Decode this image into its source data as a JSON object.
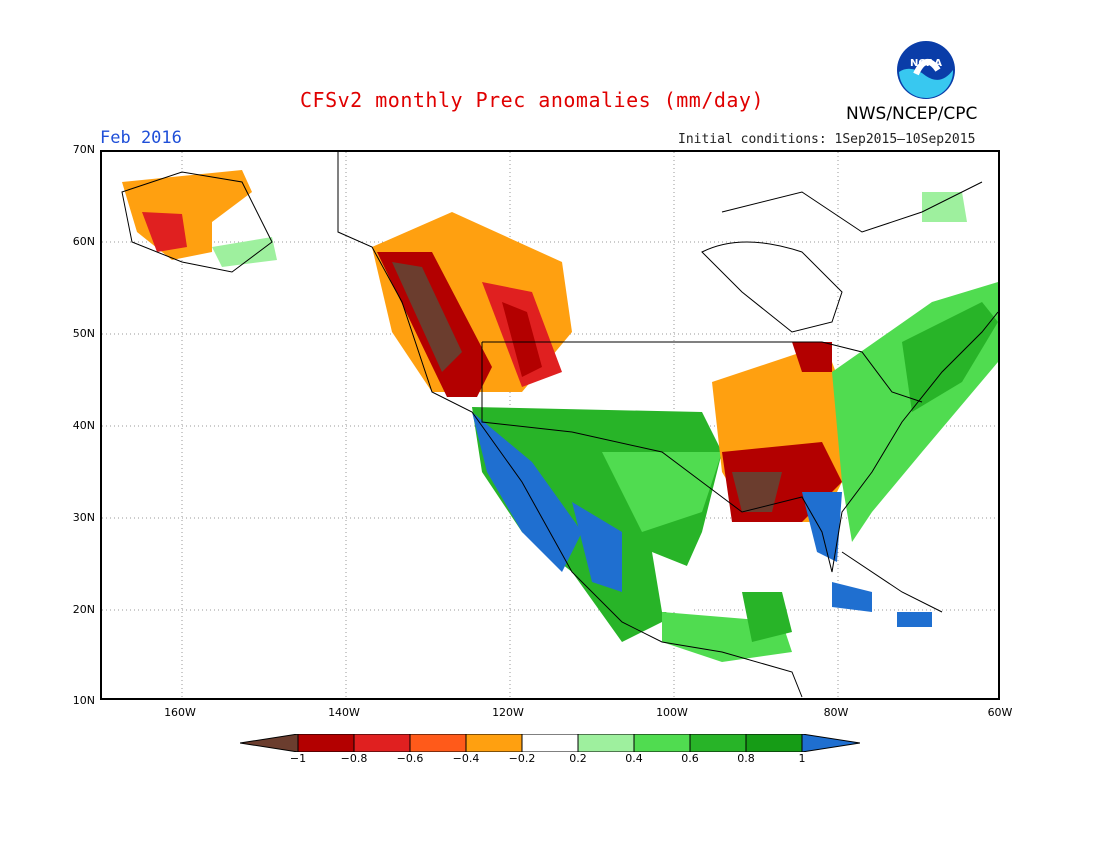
{
  "title": "CFSv2 monthly Prec anomalies (mm/day)",
  "period": "Feb 2016",
  "initial_conditions": "Initial conditions: 1Sep2015–10Sep2015",
  "org_label": "NWS/NCEP/CPC",
  "logo_text": "NOAA",
  "lat_labels": [
    "70N",
    "60N",
    "50N",
    "40N",
    "30N",
    "20N",
    "10N"
  ],
  "lon_labels": [
    "160W",
    "140W",
    "120W",
    "100W",
    "80W",
    "60W"
  ],
  "colorbar": {
    "labels": [
      "−1",
      "−0.8",
      "−0.6",
      "−0.4",
      "−0.2",
      "0.2",
      "0.4",
      "0.6",
      "0.8",
      "1"
    ],
    "colors": [
      "#6b3d2e",
      "#b30000",
      "#e02020",
      "#ff5a1a",
      "#ffa010",
      "#ffffff",
      "#9ef09e",
      "#50dc50",
      "#28b428",
      "#169c16",
      "#1f6fd0"
    ]
  },
  "regions": [
    {
      "name": "alaska-dry",
      "color": "#ffa010"
    },
    {
      "name": "pacific-northwest-very-dry",
      "color": "#6b3d2e"
    },
    {
      "name": "southwest-wet",
      "color": "#1f6fd0"
    },
    {
      "name": "gulf-coast-dry",
      "color": "#b30000"
    },
    {
      "name": "northeast-wet",
      "color": "#50dc50"
    }
  ]
}
